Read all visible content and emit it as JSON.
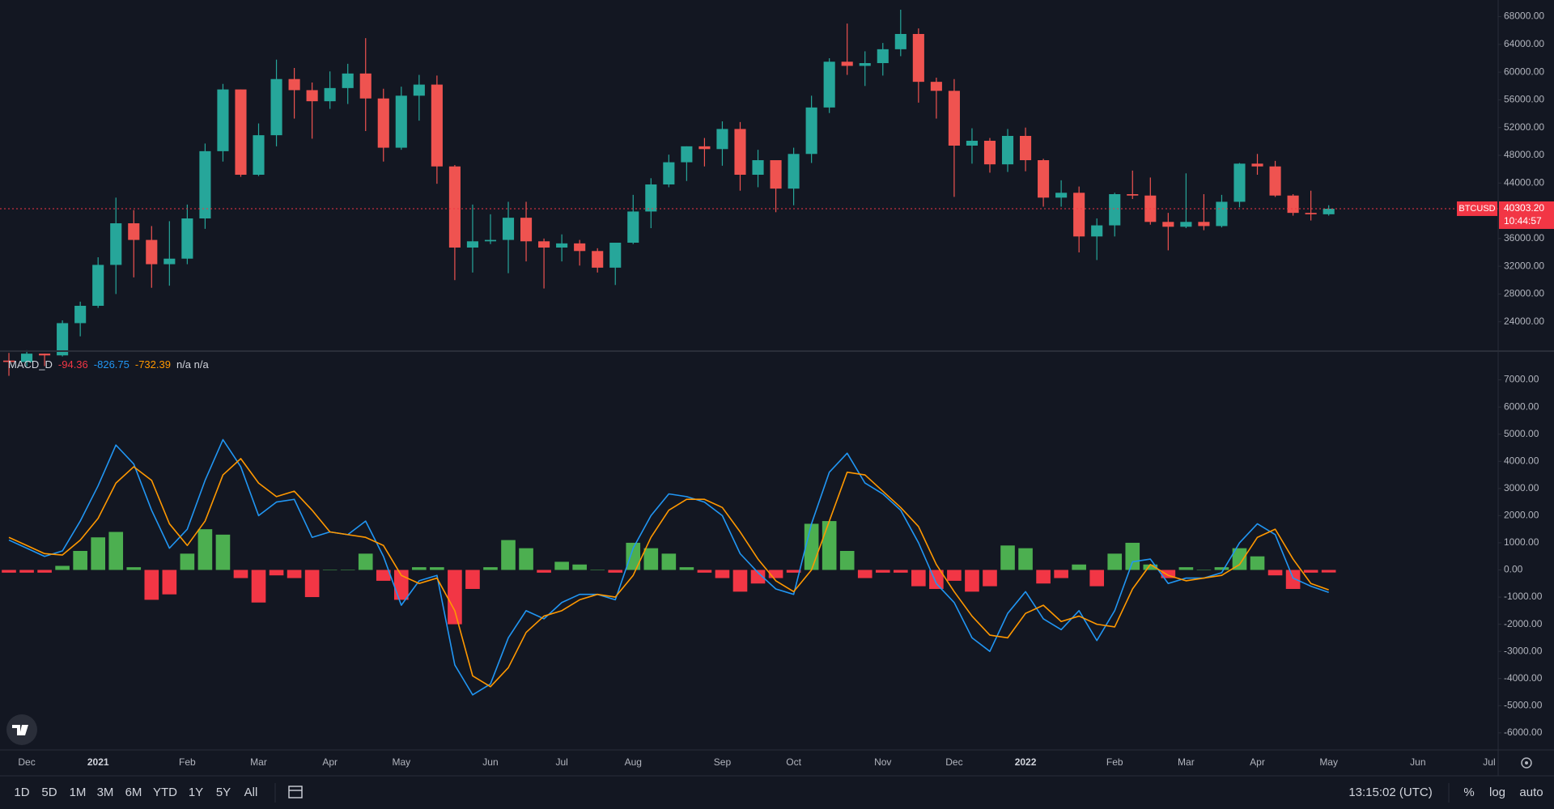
{
  "chart_data": [
    {
      "type": "candlestick",
      "symbol": "BTCUSD",
      "last_price": {
        "value": 40303.2,
        "label": "40303.20"
      },
      "countdown": "10:44:57",
      "categories": [
        null,
        "Dec",
        null,
        null,
        null,
        "2021",
        null,
        null,
        null,
        null,
        "Feb",
        null,
        null,
        null,
        "Mar",
        null,
        null,
        null,
        "Apr",
        null,
        null,
        null,
        "May",
        null,
        null,
        null,
        null,
        "Jun",
        null,
        null,
        null,
        "Jul",
        null,
        null,
        null,
        "Aug",
        null,
        null,
        null,
        null,
        "Sep",
        null,
        null,
        null,
        "Oct",
        null,
        null,
        null,
        null,
        "Nov",
        null,
        null,
        null,
        "Dec",
        null,
        null,
        null,
        "2022",
        null,
        null,
        null,
        null,
        "Feb",
        null,
        null,
        null,
        "Mar",
        null,
        null,
        null,
        "Apr",
        null,
        null,
        null,
        "May",
        null,
        null,
        null,
        null,
        "Jun",
        null,
        null,
        null,
        "Jul"
      ],
      "open": [
        18400,
        18200,
        19400,
        19150,
        23800,
        26300,
        32200,
        38200,
        35800,
        32300,
        33100,
        38900,
        48600,
        57500,
        45200,
        50900,
        59000,
        57400,
        55800,
        57700,
        59800,
        56200,
        49100,
        56600,
        58200,
        46400,
        34700,
        35600,
        35800,
        39000,
        35600,
        34700,
        35300,
        34200,
        31800,
        35400,
        39900,
        43800,
        47000,
        49300,
        48900,
        51800,
        45200,
        47300,
        43200,
        48200,
        54900,
        61500,
        60900,
        61300,
        63300,
        65500,
        58600,
        57300,
        49400,
        50100,
        46700,
        50800,
        47300,
        41900,
        42600,
        36300,
        37900,
        42400,
        42200,
        38400,
        37700,
        38400,
        37800,
        41300,
        46800,
        46400,
        42200,
        39700,
        39500,
        null,
        null,
        null,
        null,
        null,
        null,
        null,
        null,
        null
      ],
      "high": [
        19500,
        19900,
        19400,
        24200,
        26900,
        33300,
        41900,
        40100,
        37800,
        38500,
        40900,
        49700,
        58300,
        57500,
        52600,
        61800,
        60600,
        58500,
        60100,
        61200,
        64900,
        57600,
        57900,
        59600,
        59500,
        46600,
        40900,
        39500,
        41300,
        41300,
        36000,
        36600,
        35800,
        34600,
        35400,
        42300,
        44700,
        48100,
        49300,
        50500,
        52900,
        52800,
        48800,
        47300,
        49100,
        56600,
        62000,
        67000,
        63000,
        64200,
        69000,
        66300,
        59200,
        59000,
        51900,
        50500,
        51800,
        52000,
        47500,
        44400,
        43500,
        38900,
        42600,
        45800,
        44800,
        39700,
        45400,
        42400,
        42300,
        46900,
        48200,
        47200,
        42400,
        42900,
        40800,
        null,
        null,
        null,
        null,
        null,
        null,
        null,
        null,
        null
      ],
      "low": [
        16200,
        17600,
        17600,
        19000,
        21900,
        26000,
        28000,
        30400,
        28900,
        29200,
        32300,
        37400,
        47100,
        44900,
        45000,
        49300,
        53300,
        50400,
        54700,
        55400,
        51500,
        47100,
        48800,
        53000,
        43900,
        30000,
        31100,
        35200,
        31000,
        32700,
        28800,
        32700,
        32100,
        31100,
        29300,
        35200,
        37500,
        43400,
        44300,
        46400,
        46500,
        42900,
        43400,
        39800,
        40800,
        46900,
        54100,
        59600,
        58000,
        59500,
        62300,
        55600,
        53300,
        42000,
        46800,
        45500,
        45600,
        45700,
        40600,
        40600,
        34000,
        32900,
        36300,
        41700,
        38000,
        34300,
        37500,
        37200,
        37600,
        40500,
        45200,
        42000,
        39300,
        38600,
        39300,
        null,
        null,
        null,
        null,
        null,
        null,
        null,
        null,
        null
      ],
      "close": [
        18200,
        19400,
        19150,
        23800,
        26300,
        32200,
        38200,
        35800,
        32300,
        33100,
        38900,
        48600,
        57500,
        45200,
        50900,
        59000,
        57400,
        55800,
        57700,
        59800,
        56200,
        49100,
        56600,
        58200,
        46400,
        34700,
        35600,
        35800,
        39000,
        35600,
        34700,
        35300,
        34200,
        31800,
        35400,
        39900,
        43800,
        47000,
        49300,
        48900,
        51800,
        45200,
        47300,
        43200,
        48200,
        54900,
        61500,
        60900,
        61300,
        63300,
        65500,
        58600,
        57300,
        49400,
        50100,
        46700,
        50800,
        47300,
        41900,
        42600,
        36300,
        37900,
        42400,
        42200,
        38400,
        37700,
        38400,
        37800,
        41300,
        46800,
        46400,
        42200,
        39700,
        39500,
        40300,
        null,
        null,
        null,
        null,
        null,
        null,
        null,
        null,
        null
      ],
      "up_color": "#26a69a",
      "down_color": "#ef5350",
      "price_line_color": "#f23645",
      "ylim": [
        20000,
        70400
      ],
      "yticks": [
        {
          "value": 24000,
          "label": "24000.00"
        },
        {
          "value": 28000,
          "label": "28000.00"
        },
        {
          "value": 32000,
          "label": "32000.00"
        },
        {
          "value": 36000,
          "label": "36000.00"
        },
        {
          "value": 40000,
          "label": "40000.00"
        },
        {
          "value": 44000,
          "label": "44000.00"
        },
        {
          "value": 48000,
          "label": "48000.00"
        },
        {
          "value": 52000,
          "label": "52000.00"
        },
        {
          "value": 56000,
          "label": "56000.00"
        },
        {
          "value": 60000,
          "label": "60000.00"
        },
        {
          "value": 64000,
          "label": "64000.00"
        },
        {
          "value": 68000,
          "label": "68000.00"
        }
      ],
      "grid": false
    },
    {
      "type": "macd",
      "title": "MACD_D",
      "header_values": [
        -94.36,
        -826.75,
        -732.39
      ],
      "header_note": "n/a n/a",
      "series": [
        {
          "color": "#f23645",
          "positive_color": "#4caf50",
          "style": "histogram",
          "values": [
            -100,
            -100,
            -100,
            150,
            700,
            1200,
            1400,
            100,
            -1100,
            -900,
            600,
            1500,
            1300,
            -300,
            -1200,
            -200,
            -300,
            -1000,
            0,
            0,
            600,
            -400,
            -1100,
            100,
            100,
            -2000,
            -700,
            100,
            1100,
            800,
            -100,
            300,
            200,
            0,
            -100,
            1000,
            800,
            600,
            100,
            -100,
            -300,
            -800,
            -500,
            -300,
            -100,
            1700,
            1800,
            700,
            -300,
            -100,
            -100,
            -600,
            -700,
            -400,
            -800,
            -600,
            900,
            800,
            -500,
            -300,
            200,
            -600,
            600,
            1000,
            200,
            -300,
            100,
            0,
            100,
            800,
            500,
            -200,
            -700,
            -100,
            -94.36,
            null,
            null,
            null,
            null,
            null,
            null,
            null,
            null,
            null
          ]
        },
        {
          "color": "#2196f3",
          "style": "line",
          "values": [
            1100,
            800,
            500,
            700,
            1800,
            3100,
            4600,
            3900,
            2200,
            800,
            1500,
            3300,
            4800,
            3800,
            2000,
            2500,
            2600,
            1200,
            1400,
            1300,
            1800,
            500,
            -1300,
            -400,
            -200,
            -3500,
            -4600,
            -4200,
            -2500,
            -1500,
            -1800,
            -1200,
            -900,
            -900,
            -1100,
            800,
            2000,
            2800,
            2700,
            2500,
            2000,
            600,
            -100,
            -700,
            -900,
            1700,
            3600,
            4300,
            3200,
            2800,
            2200,
            1000,
            -500,
            -1200,
            -2500,
            -3000,
            -1600,
            -800,
            -1800,
            -2200,
            -1500,
            -2600,
            -1500,
            300,
            400,
            -500,
            -300,
            -300,
            -100,
            1000,
            1700,
            1300,
            -300,
            -600,
            -826.75,
            null,
            null,
            null,
            null,
            null,
            null,
            null,
            null,
            null
          ]
        },
        {
          "color": "#ff9800",
          "style": "line",
          "values": [
            1200,
            900,
            600,
            550,
            1100,
            1900,
            3200,
            3800,
            3300,
            1700,
            900,
            1800,
            3500,
            4100,
            3200,
            2700,
            2900,
            2200,
            1400,
            1300,
            1200,
            900,
            -200,
            -500,
            -300,
            -1500,
            -3900,
            -4300,
            -3600,
            -2300,
            -1700,
            -1500,
            -1100,
            -900,
            -1000,
            -200,
            1200,
            2200,
            2600,
            2600,
            2300,
            1400,
            400,
            -400,
            -800,
            0,
            1800,
            3600,
            3500,
            2900,
            2300,
            1600,
            200,
            -800,
            -1700,
            -2400,
            -2500,
            -1600,
            -1300,
            -1900,
            -1700,
            -2000,
            -2100,
            -700,
            200,
            -200,
            -400,
            -300,
            -200,
            200,
            1200,
            1500,
            400,
            -500,
            -732.39,
            null,
            null,
            null,
            null,
            null,
            null,
            null,
            null,
            null
          ]
        }
      ],
      "ylim": [
        -6600,
        8000
      ],
      "yticks": [
        {
          "value": -6000,
          "label": "-6000.00"
        },
        {
          "value": -5000,
          "label": "-5000.00"
        },
        {
          "value": -4000,
          "label": "-4000.00"
        },
        {
          "value": -3000,
          "label": "-3000.00"
        },
        {
          "value": -2000,
          "label": "-2000.00"
        },
        {
          "value": -1000,
          "label": "-1000.00"
        },
        {
          "value": 0,
          "label": "0.00"
        },
        {
          "value": 1000,
          "label": "1000.00"
        },
        {
          "value": 2000,
          "label": "2000.00"
        },
        {
          "value": 3000,
          "label": "3000.00"
        },
        {
          "value": 4000,
          "label": "4000.00"
        },
        {
          "value": 5000,
          "label": "5000.00"
        },
        {
          "value": 6000,
          "label": "6000.00"
        },
        {
          "value": 7000,
          "label": "7000.00"
        }
      ],
      "grid": false
    }
  ],
  "toolbar": {
    "ranges": [
      "1D",
      "5D",
      "1M",
      "3M",
      "6M",
      "YTD",
      "1Y",
      "5Y",
      "All"
    ],
    "clock": "13:15:02 (UTC)",
    "options": [
      "%",
      "log",
      "auto"
    ]
  }
}
